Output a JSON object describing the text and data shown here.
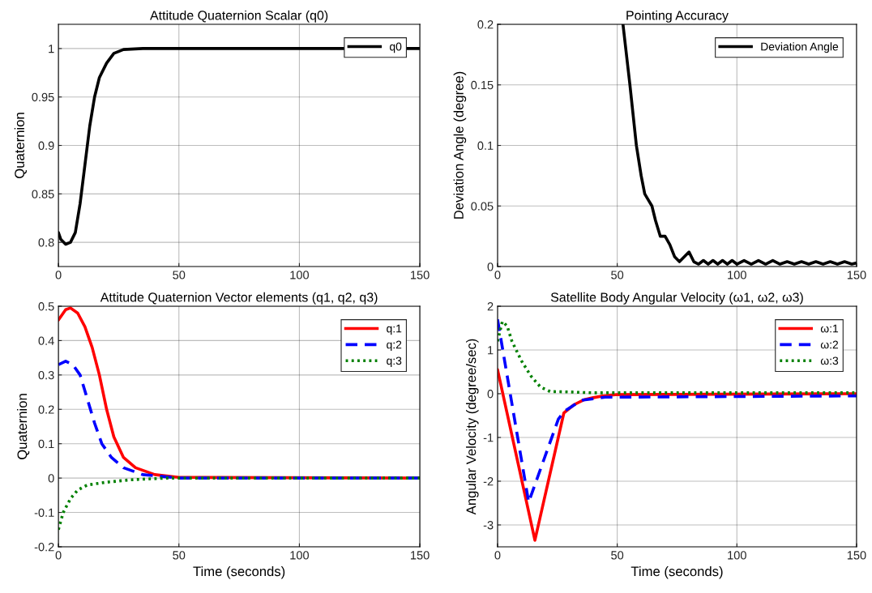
{
  "chart_data": [
    {
      "type": "line",
      "title": "Attitude Quaternion Scalar (q0)",
      "ylabel": "Quaternion",
      "xlim": [
        0,
        150
      ],
      "xticks": [
        0,
        50,
        100,
        150
      ],
      "ylim": [
        0.775,
        1.025
      ],
      "yticks": [
        0.8,
        0.85,
        0.9,
        0.95,
        1
      ],
      "grid": true,
      "legend": "top right",
      "series": [
        {
          "name": "q0",
          "color": "#000000",
          "line_style": "solid",
          "x": [
            0,
            1,
            3,
            5,
            7,
            9,
            11,
            13,
            15,
            17,
            20,
            23,
            27,
            35,
            150
          ],
          "values": [
            0.81,
            0.803,
            0.798,
            0.8,
            0.81,
            0.84,
            0.88,
            0.92,
            0.95,
            0.97,
            0.985,
            0.995,
            0.999,
            1,
            1
          ]
        }
      ]
    },
    {
      "type": "line",
      "title": "Pointing Accuracy",
      "ylabel": "Deviation Angle (degree)",
      "xlim": [
        0,
        150
      ],
      "xticks": [
        0,
        50,
        100,
        150
      ],
      "ylim": [
        0,
        0.2
      ],
      "yticks": [
        0,
        0.05,
        0.1,
        0.15,
        0.2
      ],
      "grid": true,
      "legend": "top right",
      "series": [
        {
          "name": "Deviation Angle",
          "color": "#000000",
          "line_style": "solid",
          "x": [
            52.4,
            55.3,
            58,
            60,
            61.5,
            63,
            64.5,
            66,
            68,
            70,
            72,
            74,
            76,
            78,
            80,
            82,
            84,
            86,
            88,
            90,
            92,
            94,
            96,
            98,
            100,
            103,
            106,
            109,
            112,
            115,
            118,
            121,
            124,
            127,
            130,
            133,
            136,
            139,
            142,
            145,
            148,
            150
          ],
          "values": [
            0.2,
            0.15,
            0.1,
            0.075,
            0.06,
            0.055,
            0.05,
            0.038,
            0.025,
            0.025,
            0.018,
            0.008,
            0.004,
            0.008,
            0.012,
            0.004,
            0.002,
            0.005,
            0.002,
            0.005,
            0.002,
            0.005,
            0.002,
            0.005,
            0.002,
            0.005,
            0.002,
            0.005,
            0.002,
            0.005,
            0.002,
            0.004,
            0.002,
            0.004,
            0.002,
            0.004,
            0.002,
            0.004,
            0.002,
            0.004,
            0.002,
            0.003
          ]
        }
      ]
    },
    {
      "type": "line",
      "title": "Attitude Quaternion Vector elements (q1, q2, q3)",
      "xlabel": "Time (seconds)",
      "ylabel": "Quaternion",
      "xlim": [
        0,
        150
      ],
      "xticks": [
        0,
        50,
        100,
        150
      ],
      "ylim": [
        -0.2,
        0.5
      ],
      "yticks": [
        -0.2,
        -0.1,
        0,
        0.1,
        0.2,
        0.3,
        0.4,
        0.5
      ],
      "grid": true,
      "legend": "top right",
      "series": [
        {
          "name": "q:1",
          "color": "#ff0000",
          "line_style": "solid",
          "x": [
            0,
            3,
            5,
            8,
            11,
            14,
            17,
            20,
            23,
            27,
            32,
            40,
            50,
            150
          ],
          "values": [
            0.46,
            0.49,
            0.495,
            0.48,
            0.44,
            0.38,
            0.3,
            0.2,
            0.12,
            0.06,
            0.03,
            0.01,
            0.002,
            0
          ]
        },
        {
          "name": "q:2",
          "color": "#0000ff",
          "line_style": "dashed",
          "x": [
            0,
            3,
            6,
            9,
            12,
            15,
            18,
            22,
            27,
            35,
            50,
            150
          ],
          "values": [
            0.33,
            0.34,
            0.33,
            0.3,
            0.23,
            0.16,
            0.1,
            0.06,
            0.03,
            0.01,
            0,
            0
          ]
        },
        {
          "name": "q:3",
          "color": "#008000",
          "line_style": "dotted",
          "x": [
            0,
            2,
            5,
            8,
            12,
            20,
            30,
            45,
            150
          ],
          "values": [
            -0.15,
            -0.1,
            -0.06,
            -0.035,
            -0.02,
            -0.012,
            -0.005,
            0,
            0
          ]
        }
      ]
    },
    {
      "type": "line",
      "title": "Satellite Body Angular Velocity (ω1, ω2, ω3)",
      "xlabel": "Time (seconds)",
      "ylabel": "Angular Velocity (degree/sec)",
      "xlim": [
        0,
        150
      ],
      "xticks": [
        0,
        50,
        100,
        150
      ],
      "ylim": [
        -3.5,
        2
      ],
      "yticks": [
        -3,
        -2,
        -1,
        0,
        1,
        2
      ],
      "grid": true,
      "legend": "top right",
      "series": [
        {
          "name": "ω:1",
          "color": "#ff0000",
          "line_style": "solid",
          "x": [
            0,
            15.6,
            27.7,
            32,
            36,
            40,
            44,
            50,
            150
          ],
          "values": [
            0.55,
            -3.35,
            -0.44,
            -0.25,
            -0.14,
            -0.09,
            -0.05,
            -0.02,
            0
          ]
        },
        {
          "name": "ω:2",
          "color": "#0000ff",
          "line_style": "dashed",
          "x": [
            0,
            13,
            25.4,
            28,
            35,
            45,
            150
          ],
          "values": [
            1.7,
            -2.48,
            -0.58,
            -0.4,
            -0.15,
            -0.08,
            -0.05
          ]
        },
        {
          "name": "ω:3",
          "color": "#008000",
          "line_style": "dotted",
          "x": [
            0,
            2,
            4,
            6,
            10,
            14,
            18,
            22,
            30,
            40,
            150
          ],
          "values": [
            1.2,
            1.65,
            1.55,
            1.2,
            0.75,
            0.4,
            0.15,
            0.05,
            0.04,
            0.02,
            0.02
          ]
        }
      ]
    }
  ]
}
